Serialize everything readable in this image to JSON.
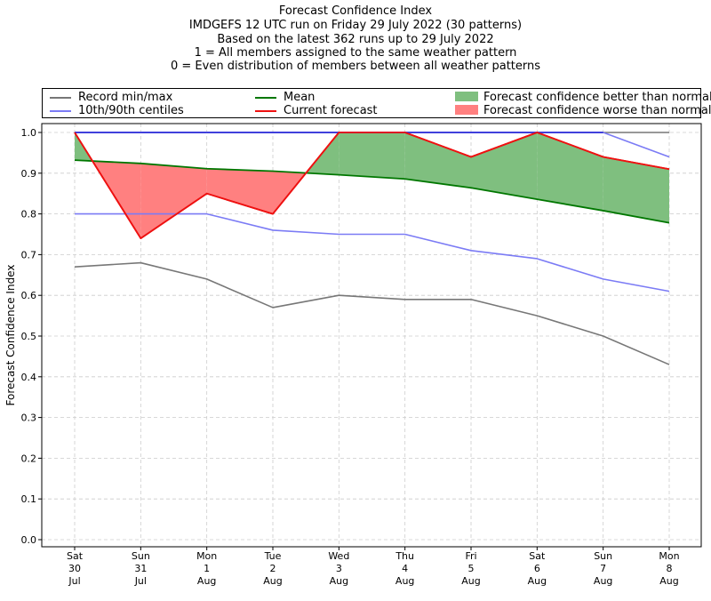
{
  "title_lines": [
    "Forecast Confidence Index",
    "IMDGEFS 12 UTC run on Friday 29 July 2022 (30 patterns)",
    "Based on the latest 362 runs up to 29 July 2022",
    "1 = All members assigned to the same weather pattern",
    "0 = Even distribution of members between all weather patterns"
  ],
  "legend": {
    "record": "Record min/max",
    "centiles": "10th/90th centiles",
    "mean": "Mean",
    "current": "Current forecast",
    "better": "Forecast confidence better than normal",
    "worse": "Forecast confidence worse than normal"
  },
  "colors": {
    "record": "#777777",
    "centiles": "#7b7bf5",
    "max_line": "#3333dd",
    "mean": "#007700",
    "current": "#ee1111",
    "better": "#7fbf7f",
    "worse": "#ff8080"
  },
  "chart_data": {
    "type": "line",
    "ylabel": "Forecast Confidence Index",
    "ylim": [
      0.0,
      1.0
    ],
    "yticks": [
      "0.0",
      "0.1",
      "0.2",
      "0.3",
      "0.4",
      "0.5",
      "0.6",
      "0.7",
      "0.8",
      "0.9",
      "1.0"
    ],
    "grid": true,
    "legend_position": "top",
    "categories": [
      [
        "Sat",
        "30",
        "Jul"
      ],
      [
        "Sun",
        "31",
        "Jul"
      ],
      [
        "Mon",
        "1",
        "Aug"
      ],
      [
        "Tue",
        "2",
        "Aug"
      ],
      [
        "Wed",
        "3",
        "Aug"
      ],
      [
        "Thu",
        "4",
        "Aug"
      ],
      [
        "Fri",
        "5",
        "Aug"
      ],
      [
        "Sat",
        "6",
        "Aug"
      ],
      [
        "Sun",
        "7",
        "Aug"
      ],
      [
        "Mon",
        "8",
        "Aug"
      ]
    ],
    "series": [
      {
        "name": "Record min/max",
        "key": "record_max",
        "values": [
          1.0,
          1.0,
          1.0,
          1.0,
          1.0,
          1.0,
          1.0,
          1.0,
          1.0,
          1.0
        ]
      },
      {
        "name": "Record min/max",
        "key": "record_min",
        "values": [
          0.67,
          0.68,
          0.64,
          0.57,
          0.6,
          0.59,
          0.59,
          0.55,
          0.5,
          0.43
        ]
      },
      {
        "name": "10th/90th centiles",
        "key": "p90",
        "values": [
          1.0,
          1.0,
          1.0,
          1.0,
          1.0,
          1.0,
          1.0,
          1.0,
          1.0,
          0.94
        ]
      },
      {
        "name": "10th/90th centiles",
        "key": "p10",
        "values": [
          0.8,
          0.8,
          0.8,
          0.76,
          0.75,
          0.75,
          0.71,
          0.69,
          0.64,
          0.61
        ]
      },
      {
        "name": "Mean",
        "key": "mean",
        "values": [
          0.932,
          0.924,
          0.911,
          0.905,
          0.896,
          0.886,
          0.864,
          0.836,
          0.808,
          0.778
        ]
      },
      {
        "name": "Current forecast",
        "key": "current",
        "values": [
          1.0,
          0.74,
          0.85,
          0.8,
          1.0,
          1.0,
          0.94,
          1.0,
          0.94,
          0.91
        ]
      }
    ]
  }
}
